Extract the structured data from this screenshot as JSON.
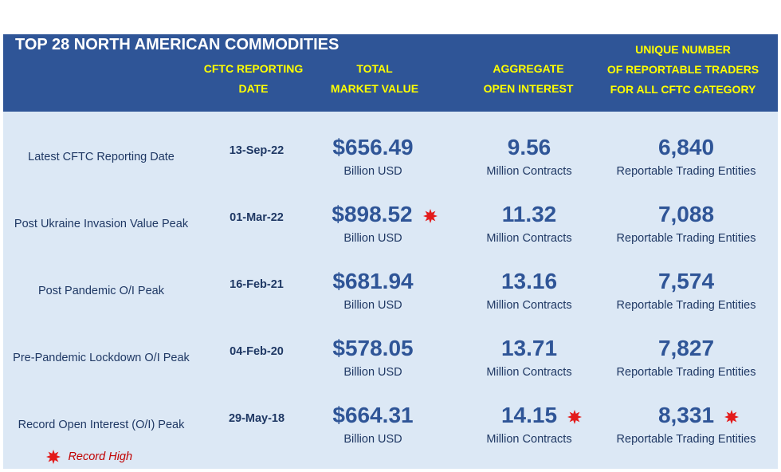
{
  "title": "TOP 28 NORTH AMERICAN COMMODITIES",
  "headers": {
    "date": [
      "CFTC REPORTING",
      "DATE"
    ],
    "value": [
      "TOTAL",
      "MARKET VALUE"
    ],
    "oi": [
      "AGGREGATE",
      "OPEN INTEREST"
    ],
    "traders": [
      "UNIQUE NUMBER",
      "OF REPORTABLE TRADERS",
      "FOR ALL CFTC CATEGORY"
    ]
  },
  "rows": [
    {
      "label": "Latest CFTC Reporting Date",
      "date": "13-Sep-22",
      "value": "$656.49",
      "value_unit": "Billion USD",
      "oi": "9.56",
      "oi_unit": "Million Contracts",
      "traders": "6,840",
      "traders_unit": "Reportable Trading Entities"
    },
    {
      "label": "Post Ukraine Invasion Value Peak",
      "date": "01-Mar-22",
      "value": "$898.52",
      "value_unit": "Billion USD",
      "oi": "11.32",
      "oi_unit": "Million Contracts",
      "traders": "7,088",
      "traders_unit": "Reportable Trading Entities"
    },
    {
      "label": "Post Pandemic O/I Peak",
      "date": "16-Feb-21",
      "value": "$681.94",
      "value_unit": "Billion USD",
      "oi": "13.16",
      "oi_unit": "Million Contracts",
      "traders": "7,574",
      "traders_unit": "Reportable Trading Entities"
    },
    {
      "label": "Pre-Pandemic Lockdown O/I Peak",
      "date": "04-Feb-20",
      "value": "$578.05",
      "value_unit": "Billion USD",
      "oi": "13.71",
      "oi_unit": "Million Contracts",
      "traders": "7,827",
      "traders_unit": "Reportable Trading Entities"
    },
    {
      "label": "Record Open Interest (O/I) Peak",
      "date": "29-May-18",
      "value": "$664.31",
      "value_unit": "Billion USD",
      "oi": "14.15",
      "oi_unit": "Million Contracts",
      "traders": "8,331",
      "traders_unit": "Reportable Trading Entities"
    }
  ],
  "legend": {
    "text": "Record High",
    "icon": "red-star-icon",
    "color": "#e31b1b"
  }
}
